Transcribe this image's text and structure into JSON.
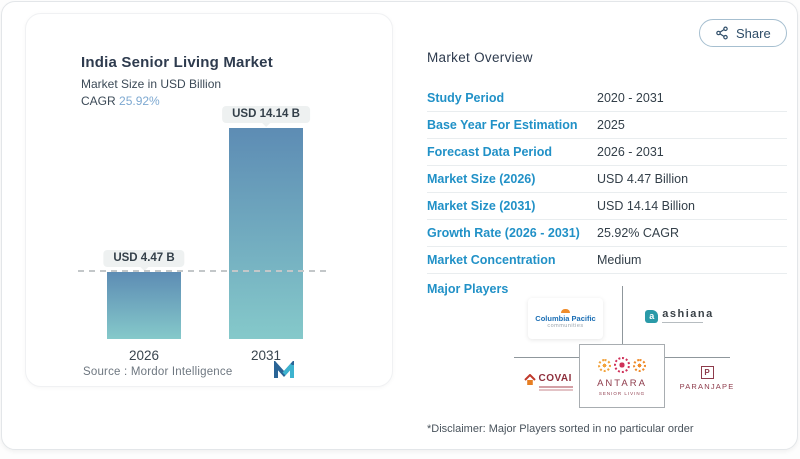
{
  "colors": {
    "accent_blue": "#2191c7",
    "cagr_blue": "#7ea9d1",
    "bar_gradient_top": "#5d8cb4",
    "bar_gradient_bottom": "#85c9ca",
    "title_navy": "#2e3b4e"
  },
  "share_button": {
    "label": "Share"
  },
  "chart_panel": {
    "title": "India Senior Living Market",
    "subtitle": "Market Size in USD Billion",
    "cagr_label": "CAGR",
    "cagr_value": "25.92%",
    "source_label": "Source :",
    "source_value": "Mordor Intelligence"
  },
  "chart_data": {
    "type": "bar",
    "categories": [
      "2026",
      "2031"
    ],
    "values": [
      4.47,
      14.14
    ],
    "bar_labels": [
      "USD 4.47 B",
      "USD 14.14 B"
    ],
    "title": "India Senior Living Market",
    "ylabel": "Market Size in USD Billion",
    "ylim": [
      0,
      14.14
    ],
    "reference_line": "horizontal dashed line at 4.47",
    "legend": "none",
    "grid": false
  },
  "overview": {
    "heading": "Market Overview",
    "rows": [
      {
        "label": "Study Period",
        "value": "2020 - 2031"
      },
      {
        "label": "Base Year For Estimation",
        "value": "2025"
      },
      {
        "label": "Forecast Data Period",
        "value": "2026 - 2031"
      },
      {
        "label": "Market Size (2026)",
        "value": "USD 4.47 Billion"
      },
      {
        "label": "Market Size (2031)",
        "value": "USD 14.14 Billion"
      },
      {
        "label": "Growth Rate (2026 - 2031)",
        "value": "25.92% CAGR"
      },
      {
        "label": "Market Concentration",
        "value": "Medium"
      }
    ],
    "major_players_label": "Major Players",
    "major_players": [
      "Columbia Pacific Communities",
      "Ashiana",
      "Covai",
      "Antara Senior Living",
      "Paranjape"
    ],
    "disclaimer": "*Disclaimer: Major Players sorted in no particular order"
  },
  "logos": {
    "columbia_pacific": {
      "name": "Columbia Pacific",
      "sub": "communities"
    },
    "ashiana": {
      "mark": "a",
      "name": "ashiana"
    },
    "covai": {
      "name": "COVAI"
    },
    "antara": {
      "name": "ANTARA",
      "sub": "SENIOR LIVING"
    },
    "paranjape": {
      "mark": "P",
      "name": "PARANJAPE"
    }
  }
}
